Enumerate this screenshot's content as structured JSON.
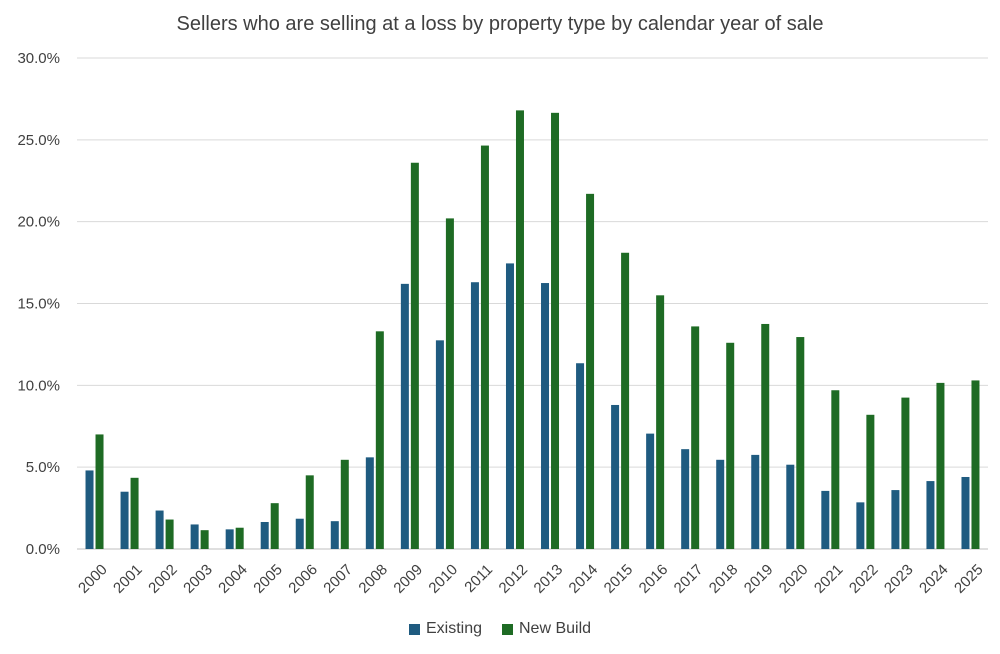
{
  "chart_data": {
    "type": "bar",
    "title": "Sellers who are selling at a loss by property type by calendar year of sale",
    "categories": [
      "2000",
      "2001",
      "2002",
      "2003",
      "2004",
      "2005",
      "2006",
      "2007",
      "2008",
      "2009",
      "2010",
      "2011",
      "2012",
      "2013",
      "2014",
      "2015",
      "2016",
      "2017",
      "2018",
      "2019",
      "2020",
      "2021",
      "2022",
      "2023",
      "2024",
      "2025"
    ],
    "series": [
      {
        "name": "Existing",
        "color": "#1f5b80",
        "values": [
          4.8,
          3.5,
          2.35,
          1.5,
          1.2,
          1.65,
          1.85,
          1.7,
          5.6,
          16.2,
          12.75,
          16.3,
          17.45,
          16.25,
          11.35,
          8.8,
          7.05,
          6.1,
          5.45,
          5.75,
          5.15,
          3.55,
          2.85,
          3.6,
          4.15,
          4.4
        ]
      },
      {
        "name": "New Build",
        "color": "#1e6b24",
        "values": [
          7.0,
          4.35,
          1.8,
          1.15,
          1.3,
          2.8,
          4.5,
          5.45,
          13.3,
          23.6,
          20.2,
          24.65,
          26.8,
          26.65,
          21.7,
          18.1,
          15.5,
          13.6,
          12.6,
          13.75,
          12.95,
          9.7,
          8.2,
          9.25,
          10.15,
          10.3
        ]
      }
    ],
    "ylim": [
      0,
      30
    ],
    "yticks": [
      "0.0%",
      "5.0%",
      "10.0%",
      "15.0%",
      "20.0%",
      "25.0%",
      "30.0%"
    ],
    "ytick_values": [
      0,
      5,
      10,
      15,
      20,
      25,
      30
    ],
    "grid": true,
    "legend_position": "bottom"
  }
}
